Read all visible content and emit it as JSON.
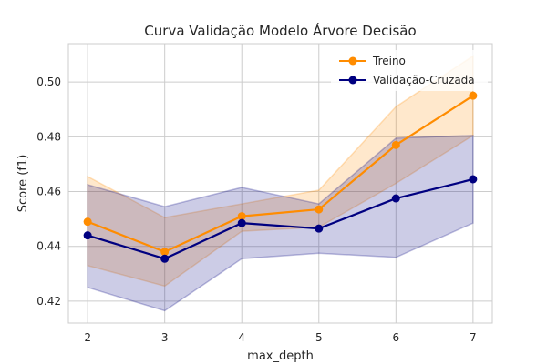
{
  "chart_data": {
    "type": "line",
    "title": "Curva Validação Modelo Árvore Decisão",
    "xlabel": "max_depth",
    "ylabel": "Score (f1)",
    "x": [
      2,
      3,
      4,
      5,
      6,
      7
    ],
    "xlim": [
      1.75,
      7.25
    ],
    "ylim": [
      0.412,
      0.514
    ],
    "xticks": [
      "2",
      "3",
      "4",
      "5",
      "6",
      "7"
    ],
    "yticks": [
      "0.42",
      "0.44",
      "0.46",
      "0.48",
      "0.50"
    ],
    "ytick_values": [
      0.42,
      0.44,
      0.46,
      0.48,
      0.5
    ],
    "grid": true,
    "legend_position": "top-right",
    "series": [
      {
        "name": "Treino",
        "color": "#ff8c00",
        "values": [
          0.449,
          0.438,
          0.451,
          0.4535,
          0.477,
          0.495
        ],
        "band_upper": [
          0.4655,
          0.4505,
          0.4555,
          0.4605,
          0.491,
          0.5095
        ],
        "band_lower": [
          0.433,
          0.4255,
          0.4455,
          0.447,
          0.463,
          0.4805
        ]
      },
      {
        "name": "Validação-Cruzada",
        "color": "#000080",
        "values": [
          0.444,
          0.4355,
          0.4485,
          0.4465,
          0.4575,
          0.4645
        ],
        "band_upper": [
          0.4625,
          0.4545,
          0.4615,
          0.4555,
          0.4795,
          0.4805
        ],
        "band_lower": [
          0.425,
          0.4165,
          0.4355,
          0.4375,
          0.436,
          0.4485
        ]
      }
    ]
  }
}
